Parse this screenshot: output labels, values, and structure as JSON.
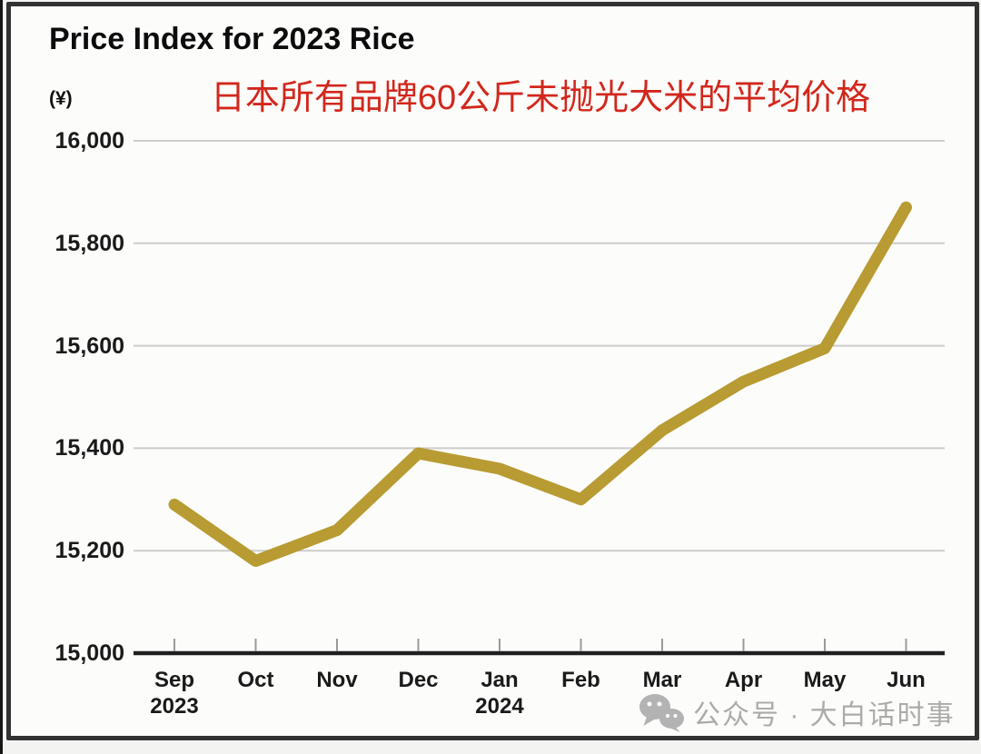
{
  "page": {
    "background": "#f3f3f1"
  },
  "card": {
    "border_color": "#323232",
    "background": "#fcfcfa"
  },
  "chart": {
    "title": "Price Index for 2023 Rice",
    "subtitle": "日本所有品牌60公斤未抛光大米的平均价格",
    "subtitle_color": "#d2271c",
    "y_unit": "(¥)"
  },
  "chart_data": {
    "type": "line",
    "title": "Price Index for 2023 Rice",
    "categories": [
      "Sep 2023",
      "Oct",
      "Nov",
      "Dec",
      "Jan 2024",
      "Feb",
      "Mar",
      "Apr",
      "May",
      "Jun"
    ],
    "values": [
      15290,
      15180,
      15240,
      15390,
      15360,
      15300,
      15435,
      15530,
      15595,
      15870
    ],
    "xlabel": "",
    "ylabel": "(¥)",
    "ylim": [
      15000,
      16000
    ],
    "yticks": [
      16000,
      15800,
      15600,
      15400,
      15200,
      15000
    ],
    "grid": true,
    "legend": "none",
    "line_color": "#b89b32",
    "grid_color": "#cccccc",
    "axis_color": "#1f1f1f",
    "tick_color": "#9a9a9a",
    "label_color": "#1a1a1a"
  },
  "watermark": {
    "icon": "wechat-icon",
    "text": "公众号 · 大白话时事",
    "color": "#ababab"
  }
}
